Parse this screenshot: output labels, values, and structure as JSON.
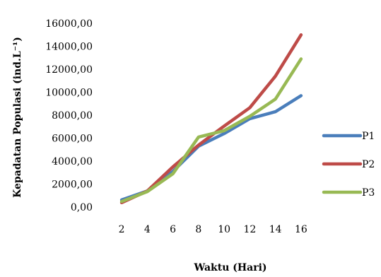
{
  "chart_data": {
    "type": "line",
    "title": "",
    "xlabel": "Waktu (Hari)",
    "ylabel": "Kepadatan Populasi (ind.L⁻¹)",
    "categories": [
      "2",
      "4",
      "6",
      "8",
      "10",
      "12",
      "14",
      "16"
    ],
    "ylim": [
      0,
      16000
    ],
    "yticks": [
      "0,00",
      "2000,00",
      "4000,00",
      "6000,00",
      "8000,00",
      "10000,00",
      "12000,00",
      "14000,00",
      "16000,00"
    ],
    "ytick_values": [
      0,
      2000,
      4000,
      6000,
      8000,
      10000,
      12000,
      14000,
      16000
    ],
    "grid": false,
    "legend_position": "right",
    "series": [
      {
        "name": "P1",
        "color": "#4a7ebb",
        "values": [
          620,
          1400,
          3100,
          5300,
          6400,
          7700,
          8300,
          9700
        ]
      },
      {
        "name": "P2",
        "color": "#be4b48",
        "values": [
          380,
          1400,
          3500,
          5400,
          7050,
          8650,
          11400,
          15000
        ]
      },
      {
        "name": "P3",
        "color": "#98b954",
        "values": [
          480,
          1350,
          2900,
          6100,
          6650,
          7900,
          9400,
          12900
        ]
      }
    ]
  }
}
